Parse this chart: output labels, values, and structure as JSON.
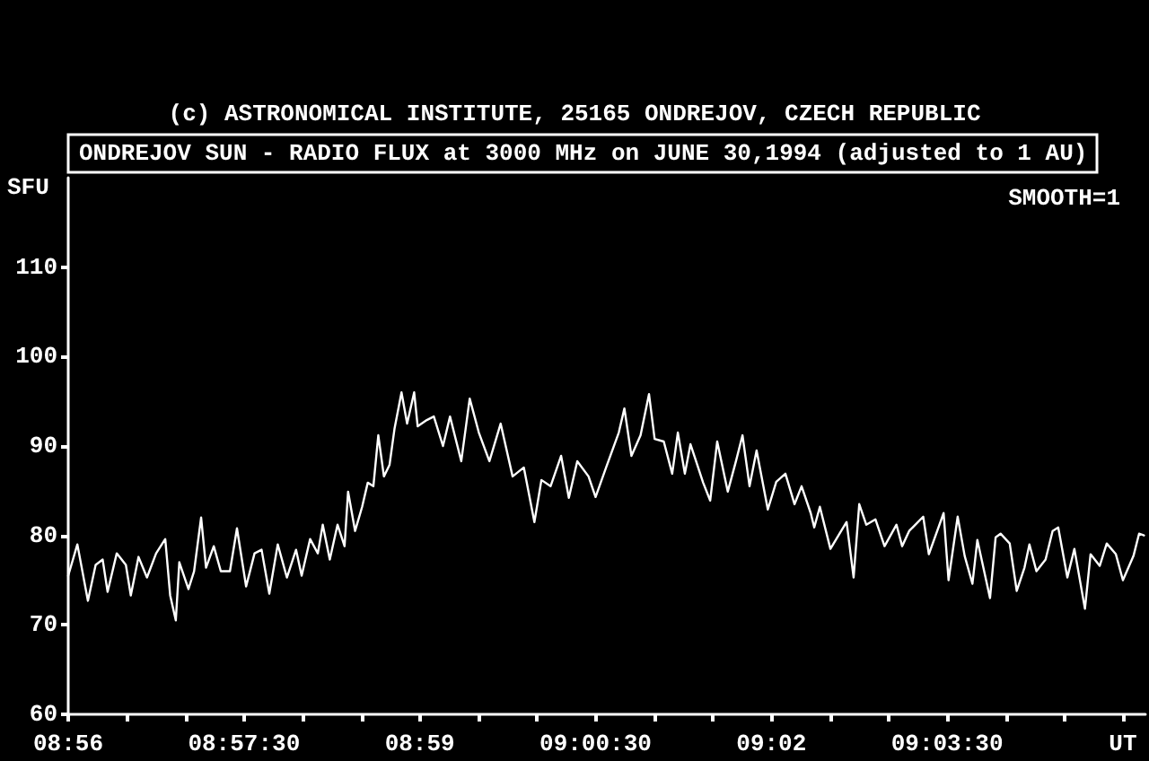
{
  "chart_data": {
    "type": "line",
    "title": "ONDREJOV SUN - RADIO FLUX at 3000 MHz on JUNE 30,1994 (adjusted to 1 AU)",
    "subtitle": "(c) ASTRONOMICAL INSTITUTE, 25165 ONDREJOV, CZECH REPUBLIC",
    "ylabel": "SFU",
    "annotations": [
      "SMOOTH=1"
    ],
    "xlim": [
      8.9333,
      9.0865
    ],
    "xticks": [
      {
        "value": 8.9333,
        "label": "08:56"
      },
      {
        "value": 8.9417,
        "label": null
      },
      {
        "value": 8.95,
        "label": null
      },
      {
        "value": 8.9583,
        "label": "08:57:30"
      },
      {
        "value": 8.9667,
        "label": null
      },
      {
        "value": 8.975,
        "label": null
      },
      {
        "value": 8.9833,
        "label": "08:59"
      },
      {
        "value": 8.9917,
        "label": null
      },
      {
        "value": 9.0,
        "label": null
      },
      {
        "value": 9.0083,
        "label": "09:00:30"
      },
      {
        "value": 9.0167,
        "label": null
      },
      {
        "value": 9.025,
        "label": null
      },
      {
        "value": 9.0333,
        "label": "09:02"
      },
      {
        "value": 9.0417,
        "label": null
      },
      {
        "value": 9.05,
        "label": null
      },
      {
        "value": 9.0583,
        "label": "09:03:30"
      },
      {
        "value": 9.0667,
        "label": null
      },
      {
        "value": 9.075,
        "label": null
      },
      {
        "value": 9.0833,
        "label": "UT"
      }
    ],
    "ylim": [
      60,
      120
    ],
    "yticks": [
      60,
      70,
      80,
      90,
      100,
      110
    ],
    "grid": false,
    "marker": "none",
    "line_style": "solid",
    "series": [
      {
        "color": "#ffffff",
        "x": [
          8.9333,
          8.9346,
          8.9361,
          8.9372,
          8.9382,
          8.9389,
          8.9402,
          8.9415,
          8.9422,
          8.9433,
          8.9445,
          8.9458,
          8.9471,
          8.9478,
          8.9486,
          8.9491,
          8.9504,
          8.9512,
          8.9522,
          8.9529,
          8.954,
          8.955,
          8.9563,
          8.9573,
          8.9586,
          8.9598,
          8.9608,
          8.9619,
          8.9631,
          8.9644,
          8.9657,
          8.9665,
          8.9677,
          8.9688,
          8.9695,
          8.9705,
          8.9716,
          8.9726,
          8.9731,
          8.9741,
          8.9751,
          8.9759,
          8.9767,
          8.9774,
          8.9782,
          8.979,
          8.9797,
          8.9807,
          8.9815,
          8.9825,
          8.983,
          8.9843,
          8.9853,
          8.9866,
          8.9876,
          8.9892,
          8.9904,
          8.9917,
          8.9932,
          8.9948,
          8.9965,
          8.9981,
          8.9996,
          9.0006,
          9.0019,
          9.0034,
          9.0045,
          9.0057,
          9.0073,
          9.0083,
          9.0098,
          9.0116,
          9.0124,
          9.0134,
          9.0147,
          9.0159,
          9.0167,
          9.018,
          9.0192,
          9.02,
          9.021,
          9.0218,
          9.0236,
          9.0246,
          9.0256,
          9.0271,
          9.0282,
          9.0292,
          9.0302,
          9.0312,
          9.0328,
          9.034,
          9.0353,
          9.0366,
          9.0376,
          9.0389,
          9.0394,
          9.0402,
          9.0417,
          9.043,
          9.044,
          9.045,
          9.0458,
          9.0468,
          9.0481,
          9.0494,
          9.0511,
          9.0519,
          9.0529,
          9.0549,
          9.0557,
          9.0578,
          9.0585,
          9.0598,
          9.0608,
          9.0619,
          9.0626,
          9.0644,
          9.0652,
          9.0659,
          9.0672,
          9.0682,
          9.0693,
          9.07,
          9.071,
          9.0723,
          9.0733,
          9.0741,
          9.0754,
          9.0764,
          9.0779,
          9.0787,
          9.08,
          9.081,
          9.0823,
          9.0833,
          9.0848,
          9.0856,
          9.0863
        ],
        "values": [
          75.5,
          79,
          72.7,
          76.7,
          77.3,
          73.7,
          78,
          76.7,
          73.3,
          77.6,
          75.3,
          78,
          79.6,
          73.3,
          70.5,
          77,
          74,
          76,
          82,
          76.4,
          78.8,
          76,
          76,
          80.8,
          74.3,
          78,
          78.4,
          73.5,
          79,
          75.3,
          78.4,
          75.5,
          79.6,
          78,
          81.2,
          77.3,
          81.2,
          78.8,
          84.9,
          80.5,
          83.2,
          85.9,
          85.5,
          91.2,
          86.6,
          87.9,
          91.9,
          96,
          92.5,
          96,
          92.2,
          92.9,
          93.3,
          90,
          93.3,
          88.3,
          95.3,
          91.5,
          88.3,
          92.5,
          86.6,
          87.6,
          81.5,
          86.2,
          85.5,
          88.9,
          84.2,
          88.3,
          86.6,
          84.3,
          87.6,
          91.5,
          94.2,
          88.9,
          91.2,
          95.8,
          90.8,
          90.5,
          86.9,
          91.5,
          86.9,
          90.2,
          85.9,
          83.9,
          90.5,
          84.9,
          88.1,
          91.2,
          85.5,
          89.5,
          82.9,
          86,
          86.9,
          83.5,
          85.5,
          82.5,
          80.9,
          83.2,
          78.5,
          80.2,
          81.5,
          75.3,
          83.5,
          81.2,
          81.8,
          78.8,
          81.2,
          78.8,
          80.5,
          82.1,
          77.9,
          82.5,
          75,
          82.1,
          77.7,
          74.6,
          79.5,
          73,
          79.8,
          80.2,
          79.1,
          73.8,
          76.4,
          79,
          76,
          77.3,
          80.5,
          80.9,
          75.3,
          78.5,
          71.8,
          77.9,
          76.6,
          79.1,
          77.9,
          75,
          77.7,
          80.2,
          80
        ]
      }
    ]
  }
}
